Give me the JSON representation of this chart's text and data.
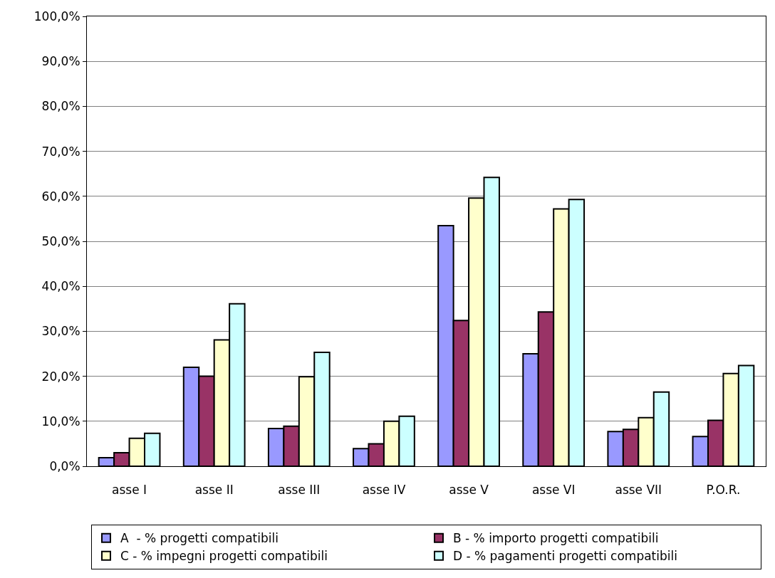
{
  "chart_data": {
    "type": "bar",
    "categories": [
      "asse I",
      "asse II",
      "asse III",
      "asse IV",
      "asse V",
      "asse VI",
      "asse VII",
      "P.O.R."
    ],
    "series": [
      {
        "name": "A  - % progetti compatibili",
        "color": "#9999ff",
        "values": [
          1.9,
          22.0,
          8.4,
          3.9,
          53.5,
          25.0,
          7.7,
          6.6
        ]
      },
      {
        "name": "B - % importo progetti compatibili",
        "color": "#993366",
        "values": [
          3.0,
          20.0,
          8.9,
          5.0,
          32.4,
          34.3,
          8.2,
          10.2
        ]
      },
      {
        "name": "C - % impegni progetti compatibili",
        "color": "#ffffcc",
        "values": [
          6.2,
          28.1,
          19.9,
          10.0,
          59.6,
          57.2,
          10.8,
          20.6
        ]
      },
      {
        "name": "D - % pagamenti progetti compatibili",
        "color": "#ccffff",
        "values": [
          7.3,
          36.1,
          25.3,
          11.1,
          64.2,
          59.3,
          16.5,
          22.4
        ]
      }
    ],
    "ylim": [
      0,
      100
    ],
    "yticks": [
      {
        "value": 0,
        "label": "0,0%"
      },
      {
        "value": 10,
        "label": "10,0%"
      },
      {
        "value": 20,
        "label": "20,0%"
      },
      {
        "value": 30,
        "label": "30,0%"
      },
      {
        "value": 40,
        "label": "40,0%"
      },
      {
        "value": 50,
        "label": "50,0%"
      },
      {
        "value": 60,
        "label": "60,0%"
      },
      {
        "value": 70,
        "label": "70,0%"
      },
      {
        "value": 80,
        "label": "80,0%"
      },
      {
        "value": 90,
        "label": "90,0%"
      },
      {
        "value": 100,
        "label": "100,0%"
      }
    ],
    "grid": "y",
    "legend": "bottom"
  }
}
